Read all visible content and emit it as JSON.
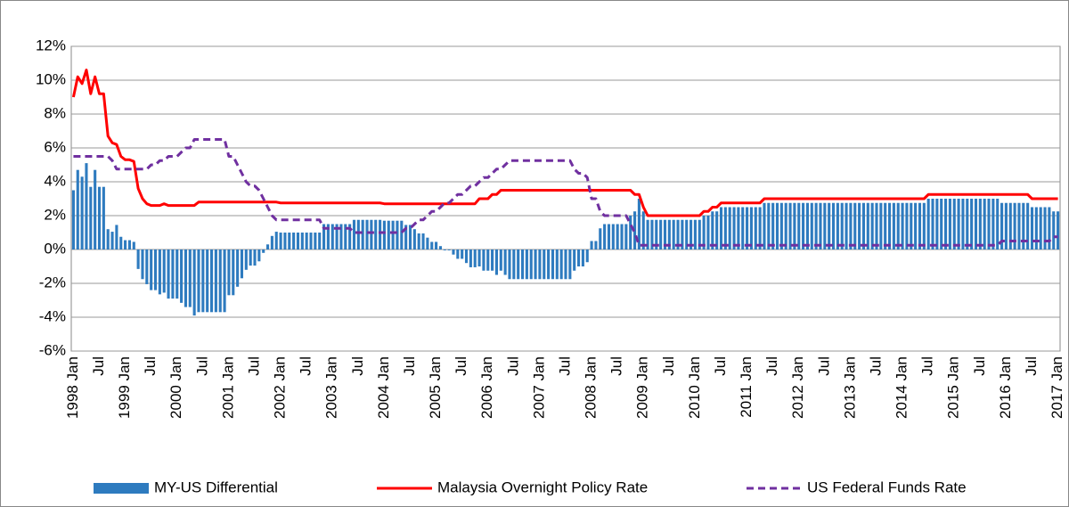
{
  "chart_data": {
    "type": "combo",
    "categories": [
      "1998 Jan",
      null,
      null,
      null,
      null,
      null,
      "Jul",
      null,
      null,
      null,
      null,
      null,
      "1999 Jan",
      null,
      null,
      null,
      null,
      null,
      "Jul",
      null,
      null,
      null,
      null,
      null,
      "2000 Jan",
      null,
      null,
      null,
      null,
      null,
      "Jul",
      null,
      null,
      null,
      null,
      null,
      "2001 Jan",
      null,
      null,
      null,
      null,
      null,
      "Jul",
      null,
      null,
      null,
      null,
      null,
      "2002 Jan",
      null,
      null,
      null,
      null,
      null,
      "Jul",
      null,
      null,
      null,
      null,
      null,
      "2003 Jan",
      null,
      null,
      null,
      null,
      null,
      "Jul",
      null,
      null,
      null,
      null,
      null,
      "2004 Jan",
      null,
      null,
      null,
      null,
      null,
      "Jul",
      null,
      null,
      null,
      null,
      null,
      "2005 Jan",
      null,
      null,
      null,
      null,
      null,
      "Jul",
      null,
      null,
      null,
      null,
      null,
      "2006 Jan",
      null,
      null,
      null,
      null,
      null,
      "Jul",
      null,
      null,
      null,
      null,
      null,
      "2007 Jan",
      null,
      null,
      null,
      null,
      null,
      "Jul",
      null,
      null,
      null,
      null,
      null,
      "2008 Jan",
      null,
      null,
      null,
      null,
      null,
      "Jul",
      null,
      null,
      null,
      null,
      null,
      "2009 Jan",
      null,
      null,
      null,
      null,
      null,
      "Jul",
      null,
      null,
      null,
      null,
      null,
      "2010 Jan",
      null,
      null,
      null,
      null,
      null,
      "Jul",
      null,
      null,
      null,
      null,
      null,
      "2011 Jan",
      null,
      null,
      null,
      null,
      null,
      "Jul",
      null,
      null,
      null,
      null,
      null,
      "2012 Jan",
      null,
      null,
      null,
      null,
      null,
      "Jul",
      null,
      null,
      null,
      null,
      null,
      "2013 Jan",
      null,
      null,
      null,
      null,
      null,
      "Jul",
      null,
      null,
      null,
      null,
      null,
      "2014 Jan",
      null,
      null,
      null,
      null,
      null,
      "Jul",
      null,
      null,
      null,
      null,
      null,
      "2015 Jan",
      null,
      null,
      null,
      null,
      null,
      "Jul",
      null,
      null,
      null,
      null,
      null,
      "2016 Jan",
      null,
      null,
      null,
      null,
      null,
      "Jul",
      null,
      null,
      null,
      null,
      null,
      "2017 Jan"
    ],
    "series": [
      {
        "name": "MY-US Differential",
        "type": "bar",
        "color": "#2e7bbf",
        "values": [
          3.5,
          4.7,
          4.3,
          5.1,
          3.7,
          4.7,
          3.7,
          3.7,
          1.2,
          1.05,
          1.45,
          0.75,
          0.55,
          0.55,
          0.45,
          -1.15,
          -1.75,
          -2.05,
          -2.4,
          -2.4,
          -2.65,
          -2.55,
          -2.9,
          -2.9,
          -2.9,
          -3.15,
          -3.4,
          -3.4,
          -3.9,
          -3.7,
          -3.7,
          -3.7,
          -3.7,
          -3.7,
          -3.7,
          -3.7,
          -2.7,
          -2.7,
          -2.2,
          -1.7,
          -1.2,
          -0.95,
          -0.95,
          -0.7,
          -0.2,
          0.3,
          0.8,
          1.05,
          1.0,
          1.0,
          1.0,
          1.0,
          1.0,
          1.0,
          1.0,
          1.0,
          1.0,
          1.0,
          1.5,
          1.5,
          1.5,
          1.5,
          1.5,
          1.5,
          1.5,
          1.75,
          1.75,
          1.75,
          1.75,
          1.75,
          1.75,
          1.75,
          1.7,
          1.7,
          1.7,
          1.7,
          1.7,
          1.45,
          1.45,
          1.2,
          0.95,
          0.95,
          0.7,
          0.45,
          0.45,
          0.2,
          -0.05,
          -0.05,
          -0.3,
          -0.55,
          -0.55,
          -0.8,
          -1.05,
          -1.05,
          -1.0,
          -1.25,
          -1.25,
          -1.25,
          -1.5,
          -1.25,
          -1.5,
          -1.75,
          -1.75,
          -1.75,
          -1.75,
          -1.75,
          -1.75,
          -1.75,
          -1.75,
          -1.75,
          -1.75,
          -1.75,
          -1.75,
          -1.75,
          -1.75,
          -1.75,
          -1.25,
          -1.0,
          -1.0,
          -0.75,
          0.5,
          0.5,
          1.25,
          1.5,
          1.5,
          1.5,
          1.5,
          1.5,
          1.5,
          2.0,
          2.25,
          3.0,
          2.25,
          1.75,
          1.75,
          1.75,
          1.75,
          1.75,
          1.75,
          1.75,
          1.75,
          1.75,
          1.75,
          1.75,
          1.75,
          1.75,
          2.0,
          2.0,
          2.25,
          2.25,
          2.5,
          2.5,
          2.5,
          2.5,
          2.5,
          2.5,
          2.5,
          2.5,
          2.5,
          2.5,
          2.75,
          2.75,
          2.75,
          2.75,
          2.75,
          2.75,
          2.75,
          2.75,
          2.75,
          2.75,
          2.75,
          2.75,
          2.75,
          2.75,
          2.75,
          2.75,
          2.75,
          2.75,
          2.75,
          2.75,
          2.75,
          2.75,
          2.75,
          2.75,
          2.75,
          2.75,
          2.75,
          2.75,
          2.75,
          2.75,
          2.75,
          2.75,
          2.75,
          2.75,
          2.75,
          2.75,
          2.75,
          2.75,
          3.0,
          3.0,
          3.0,
          3.0,
          3.0,
          3.0,
          3.0,
          3.0,
          3.0,
          3.0,
          3.0,
          3.0,
          3.0,
          3.0,
          3.0,
          3.0,
          3.0,
          2.75,
          2.75,
          2.75,
          2.75,
          2.75,
          2.75,
          2.75,
          2.5,
          2.5,
          2.5,
          2.5,
          2.5,
          2.25,
          2.25
        ]
      },
      {
        "name": "Malaysia Overnight Policy Rate",
        "type": "line",
        "line_style": "solid",
        "color": "#ff0000",
        "values": [
          9.0,
          10.2,
          9.8,
          10.6,
          9.2,
          10.2,
          9.2,
          9.2,
          6.7,
          6.3,
          6.2,
          5.5,
          5.3,
          5.3,
          5.2,
          3.6,
          3.0,
          2.7,
          2.6,
          2.6,
          2.6,
          2.7,
          2.6,
          2.6,
          2.6,
          2.6,
          2.6,
          2.6,
          2.6,
          2.8,
          2.8,
          2.8,
          2.8,
          2.8,
          2.8,
          2.8,
          2.8,
          2.8,
          2.8,
          2.8,
          2.8,
          2.8,
          2.8,
          2.8,
          2.8,
          2.8,
          2.8,
          2.8,
          2.75,
          2.75,
          2.75,
          2.75,
          2.75,
          2.75,
          2.75,
          2.75,
          2.75,
          2.75,
          2.75,
          2.75,
          2.75,
          2.75,
          2.75,
          2.75,
          2.75,
          2.75,
          2.75,
          2.75,
          2.75,
          2.75,
          2.75,
          2.75,
          2.7,
          2.7,
          2.7,
          2.7,
          2.7,
          2.7,
          2.7,
          2.7,
          2.7,
          2.7,
          2.7,
          2.7,
          2.7,
          2.7,
          2.7,
          2.7,
          2.7,
          2.7,
          2.7,
          2.7,
          2.7,
          2.7,
          3.0,
          3.0,
          3.0,
          3.25,
          3.25,
          3.5,
          3.5,
          3.5,
          3.5,
          3.5,
          3.5,
          3.5,
          3.5,
          3.5,
          3.5,
          3.5,
          3.5,
          3.5,
          3.5,
          3.5,
          3.5,
          3.5,
          3.5,
          3.5,
          3.5,
          3.5,
          3.5,
          3.5,
          3.5,
          3.5,
          3.5,
          3.5,
          3.5,
          3.5,
          3.5,
          3.5,
          3.25,
          3.25,
          2.5,
          2.0,
          2.0,
          2.0,
          2.0,
          2.0,
          2.0,
          2.0,
          2.0,
          2.0,
          2.0,
          2.0,
          2.0,
          2.0,
          2.25,
          2.25,
          2.5,
          2.5,
          2.75,
          2.75,
          2.75,
          2.75,
          2.75,
          2.75,
          2.75,
          2.75,
          2.75,
          2.75,
          3.0,
          3.0,
          3.0,
          3.0,
          3.0,
          3.0,
          3.0,
          3.0,
          3.0,
          3.0,
          3.0,
          3.0,
          3.0,
          3.0,
          3.0,
          3.0,
          3.0,
          3.0,
          3.0,
          3.0,
          3.0,
          3.0,
          3.0,
          3.0,
          3.0,
          3.0,
          3.0,
          3.0,
          3.0,
          3.0,
          3.0,
          3.0,
          3.0,
          3.0,
          3.0,
          3.0,
          3.0,
          3.0,
          3.25,
          3.25,
          3.25,
          3.25,
          3.25,
          3.25,
          3.25,
          3.25,
          3.25,
          3.25,
          3.25,
          3.25,
          3.25,
          3.25,
          3.25,
          3.25,
          3.25,
          3.25,
          3.25,
          3.25,
          3.25,
          3.25,
          3.25,
          3.25,
          3.0,
          3.0,
          3.0,
          3.0,
          3.0,
          3.0,
          3.0
        ]
      },
      {
        "name": "US Federal Funds Rate",
        "type": "line",
        "line_style": "dashed",
        "color": "#7030a0",
        "values": [
          5.5,
          5.5,
          5.5,
          5.5,
          5.5,
          5.5,
          5.5,
          5.5,
          5.5,
          5.25,
          4.75,
          4.75,
          4.75,
          4.75,
          4.75,
          4.75,
          4.75,
          4.75,
          5.0,
          5.0,
          5.25,
          5.25,
          5.5,
          5.5,
          5.5,
          5.75,
          6.0,
          6.0,
          6.5,
          6.5,
          6.5,
          6.5,
          6.5,
          6.5,
          6.5,
          6.5,
          5.5,
          5.5,
          5.0,
          4.5,
          4.0,
          3.75,
          3.75,
          3.5,
          3.0,
          2.5,
          2.0,
          1.75,
          1.75,
          1.75,
          1.75,
          1.75,
          1.75,
          1.75,
          1.75,
          1.75,
          1.75,
          1.75,
          1.25,
          1.25,
          1.25,
          1.25,
          1.25,
          1.25,
          1.25,
          1.0,
          1.0,
          1.0,
          1.0,
          1.0,
          1.0,
          1.0,
          1.0,
          1.0,
          1.0,
          1.0,
          1.0,
          1.25,
          1.25,
          1.5,
          1.75,
          1.75,
          2.0,
          2.25,
          2.25,
          2.5,
          2.75,
          2.75,
          3.0,
          3.25,
          3.25,
          3.5,
          3.75,
          3.75,
          4.0,
          4.25,
          4.25,
          4.5,
          4.75,
          4.75,
          5.0,
          5.25,
          5.25,
          5.25,
          5.25,
          5.25,
          5.25,
          5.25,
          5.25,
          5.25,
          5.25,
          5.25,
          5.25,
          5.25,
          5.25,
          5.25,
          4.75,
          4.5,
          4.5,
          4.25,
          3.0,
          3.0,
          2.25,
          2.0,
          2.0,
          2.0,
          2.0,
          2.0,
          2.0,
          1.5,
          1.0,
          0.25,
          0.25,
          0.25,
          0.25,
          0.25,
          0.25,
          0.25,
          0.25,
          0.25,
          0.25,
          0.25,
          0.25,
          0.25,
          0.25,
          0.25,
          0.25,
          0.25,
          0.25,
          0.25,
          0.25,
          0.25,
          0.25,
          0.25,
          0.25,
          0.25,
          0.25,
          0.25,
          0.25,
          0.25,
          0.25,
          0.25,
          0.25,
          0.25,
          0.25,
          0.25,
          0.25,
          0.25,
          0.25,
          0.25,
          0.25,
          0.25,
          0.25,
          0.25,
          0.25,
          0.25,
          0.25,
          0.25,
          0.25,
          0.25,
          0.25,
          0.25,
          0.25,
          0.25,
          0.25,
          0.25,
          0.25,
          0.25,
          0.25,
          0.25,
          0.25,
          0.25,
          0.25,
          0.25,
          0.25,
          0.25,
          0.25,
          0.25,
          0.25,
          0.25,
          0.25,
          0.25,
          0.25,
          0.25,
          0.25,
          0.25,
          0.25,
          0.25,
          0.25,
          0.25,
          0.25,
          0.25,
          0.25,
          0.25,
          0.25,
          0.5,
          0.5,
          0.5,
          0.5,
          0.5,
          0.5,
          0.5,
          0.5,
          0.5,
          0.5,
          0.5,
          0.5,
          0.75,
          0.75
        ]
      }
    ],
    "ylim": [
      -6,
      12
    ],
    "yticks": [
      {
        "value": -6,
        "label": "-6%"
      },
      {
        "value": -4,
        "label": "-4%"
      },
      {
        "value": -2,
        "label": "-2%"
      },
      {
        "value": 0,
        "label": "0%"
      },
      {
        "value": 2,
        "label": "2%"
      },
      {
        "value": 4,
        "label": "4%"
      },
      {
        "value": 6,
        "label": "6%"
      },
      {
        "value": 8,
        "label": "8%"
      },
      {
        "value": 10,
        "label": "10%"
      },
      {
        "value": 12,
        "label": "12%"
      }
    ],
    "grid": true,
    "legend": "bottom"
  }
}
